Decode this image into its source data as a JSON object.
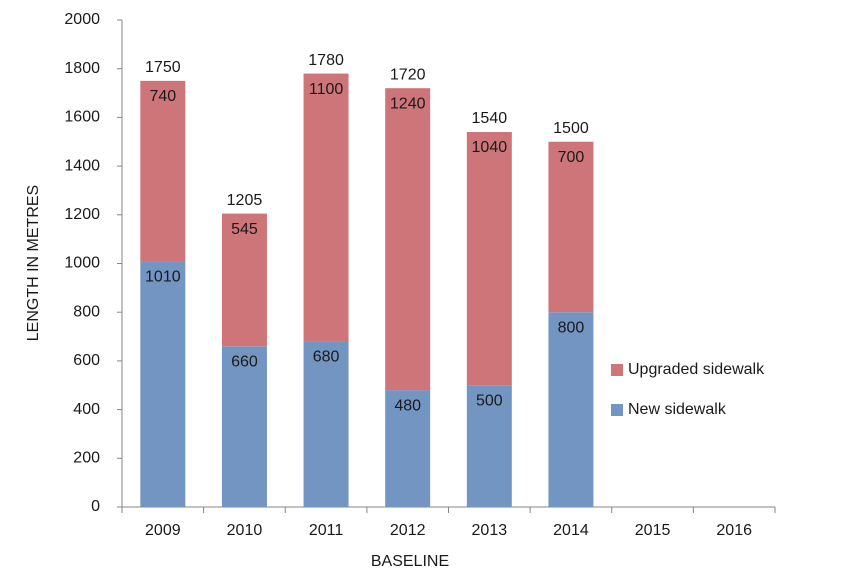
{
  "chart_data": {
    "type": "stacked_bar",
    "x_label": "BASELINE",
    "y_label": "LENGTH IN METRES",
    "categories": [
      "2009",
      "2010",
      "2011",
      "2012",
      "2013",
      "2014",
      "2015",
      "2016"
    ],
    "series": [
      {
        "name": "New sidewalk",
        "color": "#7395c1",
        "values": [
          1010,
          660,
          680,
          480,
          500,
          800,
          null,
          null
        ]
      },
      {
        "name": "Upgraded sidewalk",
        "color": "#cd7578",
        "values": [
          740,
          545,
          1100,
          1240,
          1040,
          700,
          null,
          null
        ]
      }
    ],
    "totals": [
      1750,
      1205,
      1780,
      1720,
      1540,
      1500,
      null,
      null
    ],
    "ylim": [
      0,
      2000
    ],
    "yticks": [
      0,
      200,
      400,
      600,
      800,
      1000,
      1200,
      1400,
      1600,
      1800,
      2000
    ],
    "grid": false,
    "legend": "right"
  }
}
